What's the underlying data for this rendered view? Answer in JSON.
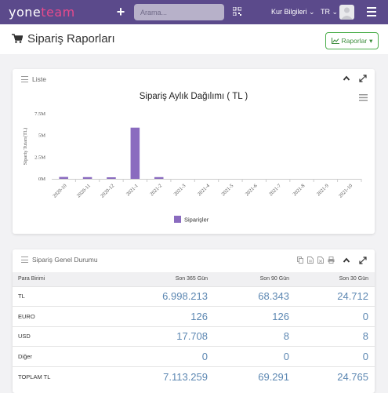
{
  "app": {
    "logo_main": "yone",
    "logo_accent": "team"
  },
  "topbar": {
    "search_placeholder": "Arama...",
    "currency_menu": "Kur Bilgileri",
    "language": "TR"
  },
  "page": {
    "title": "Sipariş Raporları",
    "reports_button": "Raporlar"
  },
  "list_card": {
    "title": "Liste"
  },
  "chart_data": {
    "type": "bar",
    "title": "Sipariş Aylık Dağılımı ( TL )",
    "ylabel": "Sipariş Tutarı(TL)",
    "xlabel": "",
    "categories": [
      "2020-10",
      "2020-11",
      "2020-12",
      "2021-1",
      "2021-2",
      "2021-3",
      "2021-4",
      "2021-5",
      "2021-6",
      "2021-7",
      "2021-8",
      "2021-9",
      "2021-10"
    ],
    "series": [
      {
        "name": "Siparişler",
        "values": [
          220000,
          200000,
          180000,
          5900000,
          200000,
          0,
          0,
          0,
          0,
          0,
          0,
          0,
          0
        ]
      }
    ],
    "yticks": [
      {
        "value": 0,
        "label": "0M"
      },
      {
        "value": 2500000,
        "label": "2.5M"
      },
      {
        "value": 5000000,
        "label": "5M"
      },
      {
        "value": 7500000,
        "label": "7.5M"
      }
    ],
    "ylim": [
      0,
      7500000
    ],
    "legend": "bottom-center",
    "grid": false,
    "color": "#8a6bbf"
  },
  "status_card": {
    "title": "Sipariş Genel Durumu",
    "columns": [
      "Para Birimi",
      "Son 365 Gün",
      "Son 90 Gün",
      "Son 30 Gün"
    ],
    "rows": [
      [
        "TL",
        "6.998.213",
        "68.343",
        "24.712"
      ],
      [
        "EURO",
        "126",
        "126",
        "0"
      ],
      [
        "USD",
        "17.708",
        "8",
        "8"
      ],
      [
        "Diğer",
        "0",
        "0",
        "0"
      ],
      [
        "TOPLAM TL",
        "7.113.259",
        "69.291",
        "24.765"
      ]
    ]
  },
  "colors": {
    "topbar": "#5b4a8b",
    "accent": "#e84a8c",
    "bar": "#8a6bbf",
    "value_text": "#5c87b2",
    "success": "#4cae4c"
  }
}
